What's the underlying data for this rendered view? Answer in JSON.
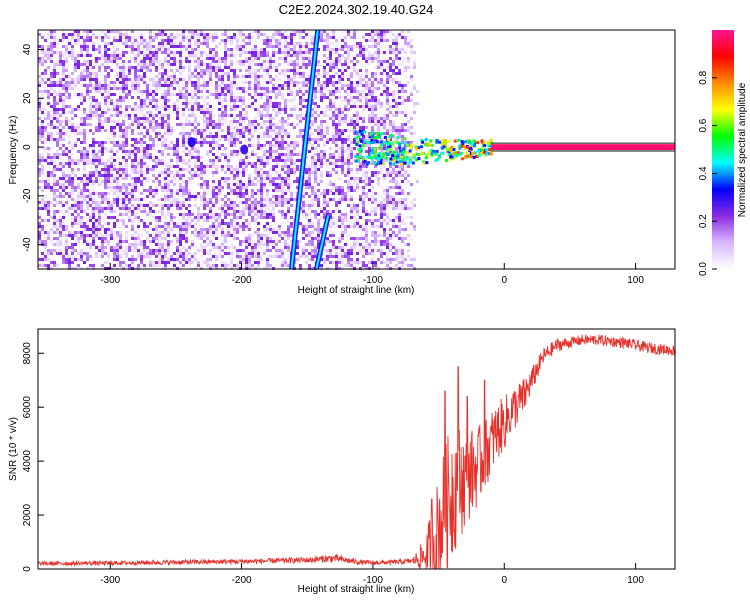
{
  "title": "C2E2.2024.302.19.40.G24",
  "chart_data": [
    {
      "type": "heatmap",
      "xlabel": "Height of straight line (km)",
      "ylabel": "Frequency (Hz)",
      "xlim": [
        -355,
        130
      ],
      "ylim": [
        -50,
        48
      ],
      "x_ticks": [
        -300,
        -200,
        -100,
        0,
        100
      ],
      "x_tick_labels": [
        "-300",
        "-200",
        "-100",
        "0",
        "100"
      ],
      "y_ticks": [
        -40,
        -20,
        0,
        20,
        40
      ],
      "y_tick_labels": [
        "-40",
        "-20",
        "0",
        "20",
        "40"
      ],
      "colorbar": {
        "label": "Normalized spectral amplitude",
        "range": [
          0,
          1
        ],
        "ticks": [
          0,
          0.2,
          0.4,
          0.6,
          0.8
        ],
        "tick_labels": [
          "0.0",
          "0.2",
          "0.4",
          "0.6",
          "0.8"
        ],
        "colors": [
          "#ffffff",
          "#d8b8ff",
          "#8a2be2",
          "#0000ff",
          "#00ffff",
          "#00ff00",
          "#ffff00",
          "#ff8c00",
          "#ff0000",
          "#ff1493"
        ]
      },
      "features": {
        "noise_region_x": [
          -355,
          -80
        ],
        "noise_amplitude": 0.25,
        "tone_line": {
          "frequency": 0,
          "x_start": -10,
          "x_end": 130,
          "amplitude": 0.97
        },
        "tone_onset": {
          "x_start": -115,
          "x_end": -10,
          "frequency_spread": 6,
          "amplitude": 0.6
        },
        "tilted_lines": [
          {
            "x_start": -162,
            "freq_start": -50,
            "x_end": -142,
            "freq_end": 48,
            "amplitude": 0.3
          },
          {
            "x_start": -143,
            "freq_start": -50,
            "x_end": -134,
            "freq_end": -28,
            "amplitude": 0.3
          }
        ],
        "small_blobs": [
          {
            "x": -238,
            "freq": 2,
            "amplitude": 0.3
          },
          {
            "x": -198,
            "freq": -1,
            "amplitude": 0.28
          }
        ]
      },
      "grid": false,
      "legend": "none"
    },
    {
      "type": "line",
      "xlabel": "Height of straight line (km)",
      "ylabel": "SNR (10 * v/v)",
      "xlim": [
        -355,
        130
      ],
      "ylim": [
        0,
        8900
      ],
      "x_ticks": [
        -300,
        -200,
        -100,
        0,
        100
      ],
      "x_tick_labels": [
        "-300",
        "-200",
        "-100",
        "0",
        "100"
      ],
      "y_ticks": [
        0,
        2000,
        4000,
        6000,
        8000
      ],
      "y_tick_labels": [
        "0",
        "2000",
        "4000",
        "6000",
        "8000"
      ],
      "series": [
        {
          "color": "#e8302a",
          "x": [
            -355,
            -300,
            -250,
            -200,
            -150,
            -130,
            -110,
            -100,
            -90,
            -80,
            -70,
            -60,
            -55,
            -50,
            -45,
            -40,
            -35,
            -30,
            -25,
            -20,
            -15,
            -10,
            -5,
            0,
            5,
            10,
            15,
            20,
            25,
            30,
            40,
            50,
            60,
            70,
            80,
            90,
            100,
            110,
            120,
            130
          ],
          "y": [
            200,
            220,
            250,
            280,
            330,
            400,
            250,
            230,
            240,
            260,
            300,
            500,
            900,
            1500,
            2200,
            2900,
            3200,
            3300,
            3600,
            3800,
            4200,
            4700,
            5100,
            5400,
            5800,
            6100,
            6400,
            6900,
            7400,
            7900,
            8300,
            8400,
            8500,
            8500,
            8450,
            8400,
            8300,
            8200,
            8150,
            8100
          ],
          "noise_amplitude": [
            80,
            80,
            90,
            90,
            110,
            150,
            90,
            80,
            80,
            90,
            100,
            700,
            1500,
            2000,
            2400,
            2600,
            2200,
            1800,
            1600,
            1500,
            1300,
            1200,
            1100,
            1000,
            900,
            800,
            700,
            500,
            400,
            300,
            250,
            200,
            200,
            200,
            200,
            200,
            200,
            200,
            200,
            200
          ],
          "spikes": [
            {
              "x": -55,
              "y": 2600
            },
            {
              "x": -45,
              "y": 6600
            },
            {
              "x": -35,
              "y": 7500
            },
            {
              "x": -28,
              "y": 6400
            },
            {
              "x": -15,
              "y": 7000
            }
          ]
        }
      ],
      "grid": false,
      "legend": "none"
    }
  ]
}
